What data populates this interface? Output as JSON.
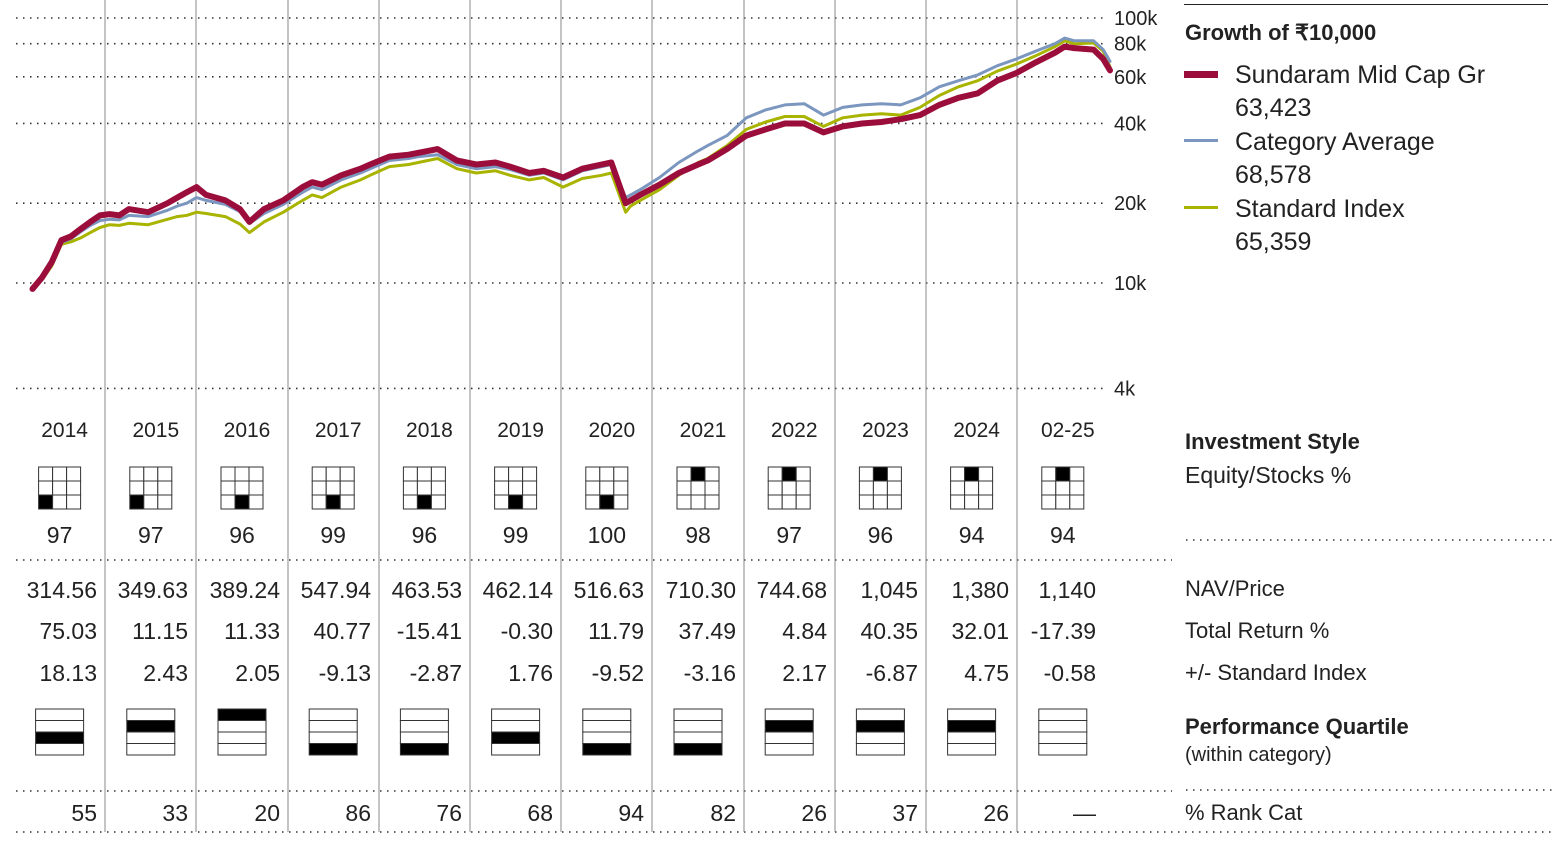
{
  "title": "Growth of  ₹10,000",
  "colors": {
    "fund": "#9b0d3a",
    "category": "#7b96bf",
    "index": "#a8b400",
    "grid": "#444444",
    "quartile_fill": "#000000"
  },
  "legend": [
    {
      "name": "Sundaram Mid Cap Gr",
      "value": "63,423",
      "color": "#9b0d3a"
    },
    {
      "name": "Category Average",
      "value": "68,578",
      "color": "#7b96bf"
    },
    {
      "name": "Standard Index",
      "value": "65,359",
      "color": "#a8b400"
    }
  ],
  "chart_data": {
    "type": "line",
    "y_scale": "log",
    "ylim": [
      4000,
      100000
    ],
    "y_ticks": [
      {
        "value": 100000,
        "label": "100k"
      },
      {
        "value": 80000,
        "label": "80k"
      },
      {
        "value": 60000,
        "label": "60k"
      },
      {
        "value": 40000,
        "label": "40k"
      },
      {
        "value": 20000,
        "label": "20k"
      },
      {
        "value": 10000,
        "label": "10k"
      },
      {
        "value": 4000,
        "label": "4k"
      }
    ],
    "x_range": [
      2013.85,
      2025.17
    ],
    "years": [
      "2014",
      "2015",
      "2016",
      "2017",
      "2018",
      "2019",
      "2020",
      "2021",
      "2022",
      "2023",
      "2024",
      "02-25"
    ],
    "series": [
      {
        "name": "Sundaram Mid Cap Gr",
        "color": "#9b0d3a",
        "x": [
          2014.0,
          2014.1,
          2014.2,
          2014.3,
          2014.4,
          2014.5,
          2014.6,
          2014.7,
          2014.8,
          2014.9,
          2015.0,
          2015.2,
          2015.4,
          2015.5,
          2015.6,
          2015.7,
          2015.8,
          2016.0,
          2016.15,
          2016.25,
          2016.4,
          2016.6,
          2016.8,
          2016.9,
          2017.0,
          2017.2,
          2017.4,
          2017.5,
          2017.7,
          2017.9,
          2018.0,
          2018.2,
          2018.4,
          2018.6,
          2018.8,
          2018.95,
          2019.15,
          2019.3,
          2019.5,
          2019.7,
          2019.9,
          2020.0,
          2020.15,
          2020.2,
          2020.3,
          2020.5,
          2020.7,
          2020.9,
          2021.0,
          2021.2,
          2021.4,
          2021.6,
          2021.8,
          2022.0,
          2022.2,
          2022.4,
          2022.6,
          2022.8,
          2023.0,
          2023.2,
          2023.4,
          2023.6,
          2023.8,
          2024.0,
          2024.2,
          2024.4,
          2024.6,
          2024.7,
          2024.8,
          2025.0,
          2025.1,
          2025.17
        ],
        "y": [
          9500,
          10500,
          12000,
          14500,
          15000,
          16000,
          17000,
          18000,
          18200,
          18000,
          19000,
          18500,
          20000,
          21000,
          22000,
          23000,
          21500,
          20500,
          19000,
          17000,
          19000,
          20500,
          23000,
          24000,
          23500,
          25500,
          27000,
          28000,
          30000,
          30500,
          31000,
          32000,
          29000,
          28000,
          28500,
          27500,
          26000,
          26500,
          25000,
          27000,
          28000,
          28500,
          20000,
          20500,
          21500,
          23500,
          26000,
          28000,
          29000,
          32000,
          36000,
          38000,
          40000,
          40000,
          37000,
          39000,
          40000,
          40500,
          41500,
          43000,
          47000,
          50000,
          52000,
          58000,
          62000,
          68000,
          74000,
          78000,
          77000,
          76000,
          70000,
          63423
        ]
      },
      {
        "name": "Category Average",
        "color": "#7b96bf",
        "x": [
          2014.0,
          2014.1,
          2014.2,
          2014.3,
          2014.4,
          2014.5,
          2014.6,
          2014.7,
          2014.8,
          2014.9,
          2015.0,
          2015.2,
          2015.4,
          2015.5,
          2015.6,
          2015.7,
          2015.8,
          2016.0,
          2016.15,
          2016.25,
          2016.4,
          2016.6,
          2016.8,
          2016.9,
          2017.0,
          2017.2,
          2017.4,
          2017.5,
          2017.7,
          2017.9,
          2018.0,
          2018.2,
          2018.4,
          2018.6,
          2018.8,
          2018.95,
          2019.15,
          2019.3,
          2019.5,
          2019.7,
          2019.9,
          2020.0,
          2020.15,
          2020.2,
          2020.3,
          2020.5,
          2020.7,
          2020.9,
          2021.0,
          2021.2,
          2021.4,
          2021.6,
          2021.8,
          2022.0,
          2022.2,
          2022.4,
          2022.6,
          2022.8,
          2023.0,
          2023.2,
          2023.4,
          2023.6,
          2023.8,
          2024.0,
          2024.2,
          2024.4,
          2024.6,
          2024.7,
          2024.8,
          2025.0,
          2025.1,
          2025.17
        ],
        "y": [
          9700,
          10400,
          11800,
          14200,
          14700,
          15600,
          16500,
          17200,
          17400,
          17300,
          18000,
          17800,
          18800,
          19500,
          20000,
          21000,
          20500,
          19800,
          18600,
          16800,
          18300,
          19800,
          22000,
          23000,
          22500,
          24500,
          26000,
          27000,
          29000,
          29500,
          30000,
          30500,
          28000,
          27000,
          27500,
          26800,
          25500,
          26000,
          24500,
          26500,
          27500,
          28000,
          21000,
          21500,
          22500,
          25000,
          28500,
          31500,
          33000,
          36000,
          42000,
          45000,
          47000,
          47500,
          43000,
          46000,
          47000,
          47500,
          47000,
          50000,
          55000,
          58000,
          61000,
          66000,
          70000,
          75000,
          80000,
          84000,
          82000,
          82000,
          76000,
          68578
        ]
      },
      {
        "name": "Standard Index",
        "color": "#a8b400",
        "x": [
          2014.0,
          2014.1,
          2014.2,
          2014.3,
          2014.4,
          2014.5,
          2014.6,
          2014.7,
          2014.8,
          2014.9,
          2015.0,
          2015.2,
          2015.4,
          2015.5,
          2015.6,
          2015.7,
          2015.8,
          2016.0,
          2016.15,
          2016.25,
          2016.4,
          2016.6,
          2016.8,
          2016.9,
          2017.0,
          2017.2,
          2017.4,
          2017.5,
          2017.7,
          2017.9,
          2018.0,
          2018.2,
          2018.4,
          2018.6,
          2018.8,
          2018.95,
          2019.15,
          2019.3,
          2019.5,
          2019.7,
          2019.9,
          2020.0,
          2020.15,
          2020.2,
          2020.3,
          2020.5,
          2020.7,
          2020.9,
          2021.0,
          2021.2,
          2021.4,
          2021.6,
          2021.8,
          2022.0,
          2022.2,
          2022.4,
          2022.6,
          2022.8,
          2023.0,
          2023.2,
          2023.4,
          2023.6,
          2023.8,
          2024.0,
          2024.2,
          2024.4,
          2024.6,
          2024.7,
          2024.8,
          2025.0,
          2025.1,
          2025.17
        ],
        "y": [
          9600,
          10300,
          11600,
          14000,
          14300,
          14800,
          15500,
          16200,
          16600,
          16500,
          16800,
          16600,
          17400,
          17800,
          18000,
          18500,
          18300,
          17800,
          16700,
          15500,
          17000,
          18500,
          20500,
          21500,
          21000,
          23000,
          24500,
          25500,
          27500,
          28000,
          28500,
          29500,
          27000,
          26000,
          26500,
          25500,
          24500,
          25000,
          23000,
          24800,
          25500,
          26000,
          18500,
          19500,
          20500,
          22500,
          25500,
          28500,
          29500,
          33000,
          38000,
          40500,
          42500,
          42500,
          39000,
          42000,
          43000,
          43500,
          43000,
          46000,
          51000,
          55000,
          58000,
          63000,
          67000,
          72000,
          78000,
          82000,
          80000,
          80500,
          75000,
          65359
        ]
      }
    ]
  },
  "investment_style": {
    "label": "Investment Style",
    "sublabel": "Equity/Stocks %",
    "boxes": [
      {
        "cell": 7,
        "equity": "97"
      },
      {
        "cell": 7,
        "equity": "97"
      },
      {
        "cell": 8,
        "equity": "96"
      },
      {
        "cell": 8,
        "equity": "99"
      },
      {
        "cell": 8,
        "equity": "96"
      },
      {
        "cell": 8,
        "equity": "99"
      },
      {
        "cell": 8,
        "equity": "100"
      },
      {
        "cell": 2,
        "equity": "98"
      },
      {
        "cell": 2,
        "equity": "97"
      },
      {
        "cell": 2,
        "equity": "96"
      },
      {
        "cell": 2,
        "equity": "94"
      },
      {
        "cell": 2,
        "equity": "94"
      }
    ]
  },
  "table": {
    "rows": [
      {
        "label": "NAV/Price",
        "values": [
          "314.56",
          "349.63",
          "389.24",
          "547.94",
          "463.53",
          "462.14",
          "516.63",
          "710.30",
          "744.68",
          "1,045",
          "1,380",
          "1,140"
        ]
      },
      {
        "label": "Total Return %",
        "values": [
          "75.03",
          "11.15",
          "11.33",
          "40.77",
          "-15.41",
          "-0.30",
          "11.79",
          "37.49",
          "4.84",
          "40.35",
          "32.01",
          "-17.39"
        ]
      },
      {
        "label": "+/- Standard Index",
        "values": [
          "18.13",
          "2.43",
          "2.05",
          "-9.13",
          "-2.87",
          "1.76",
          "-9.52",
          "-3.16",
          "2.17",
          "-6.87",
          "4.75",
          "-0.58"
        ]
      }
    ]
  },
  "quartile": {
    "label": "Performance Quartile",
    "sublabel": "(within category)",
    "values": [
      3,
      2,
      1,
      4,
      4,
      3,
      4,
      4,
      2,
      2,
      2,
      0
    ]
  },
  "rank": {
    "label": "% Rank Cat",
    "values": [
      "55",
      "33",
      "20",
      "86",
      "76",
      "68",
      "94",
      "82",
      "26",
      "37",
      "26",
      "—"
    ]
  }
}
